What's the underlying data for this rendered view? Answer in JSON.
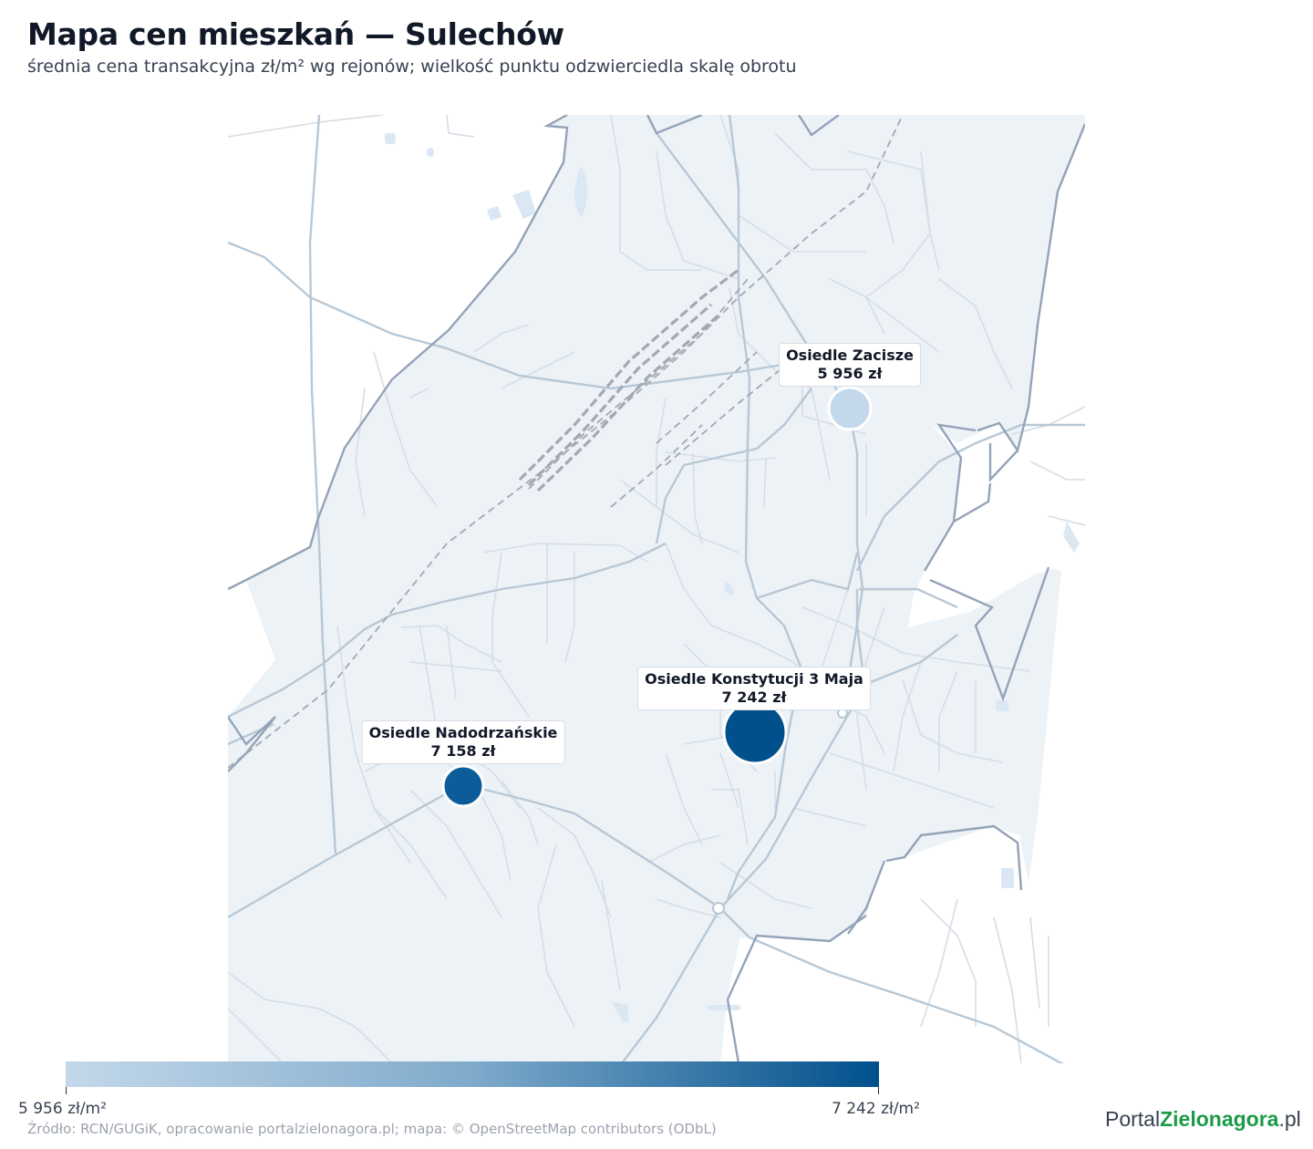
{
  "title": "Mapa cen mieszkań — Sulechów",
  "subtitle": "średnia cena transakcyjna zł/m² wg rejonów; wielkość punktu odzwierciedla skalę obrotu",
  "colors": {
    "low": "#c3d8ea",
    "mid": "#7faacb",
    "high": "#00508c",
    "area_fill": "#edf2f7",
    "boundary": "#94a3b8",
    "road": "#b7c8d6",
    "minor_road": "#d6dde6",
    "rail": "#a3a8b3",
    "water": "#dbe7f3"
  },
  "districts": [
    {
      "name": "Osiedle Zacisze",
      "price_label": "5 956 zł",
      "price": 5956,
      "color": "#c3d8ea"
    },
    {
      "name": "Osiedle Konstytucji 3 Maja",
      "price_label": "7 242 zł",
      "price": 7242,
      "color": "#00508c"
    },
    {
      "name": "Osiedle Nadodrzańskie",
      "price_label": "7 158 zł",
      "price": 7158,
      "color": "#0b5c99"
    }
  ],
  "colorbar": {
    "min_label": "5 956 zł/m²",
    "max_label": "7 242 zł/m²",
    "min": 5956,
    "max": 7242
  },
  "source": "Źródło: RCN/GUGiK, opracowanie portalzielonagora.pl; mapa: © OpenStreetMap contributors (ODbL)",
  "logo": {
    "part1": "Portal",
    "part2": "Zielonagora",
    "part3": ".pl"
  }
}
